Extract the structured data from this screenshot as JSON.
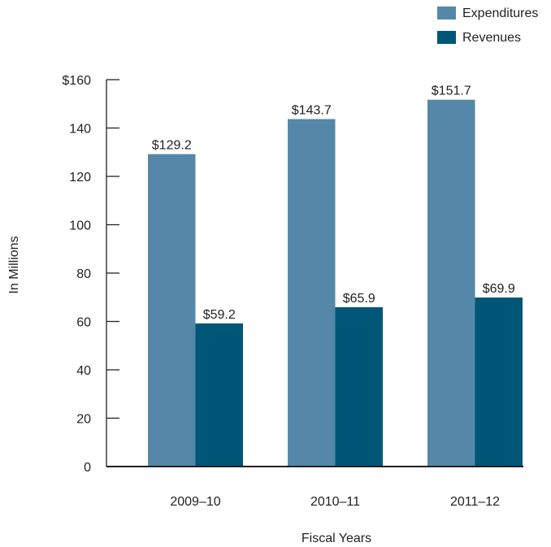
{
  "chart_data": {
    "type": "bar",
    "categories": [
      "2009–10",
      "2010–11",
      "2011–12"
    ],
    "series": [
      {
        "name": "Expenditures",
        "values": [
          129.2,
          143.7,
          151.7
        ],
        "labels": [
          "$129.2",
          "$143.7",
          "$151.7"
        ],
        "color": "#5588a8"
      },
      {
        "name": "Revenues",
        "values": [
          59.2,
          65.9,
          69.9
        ],
        "labels": [
          "$59.2",
          "$65.9",
          "$69.9"
        ],
        "color": "#005677"
      }
    ],
    "xlabel": "Fiscal Years",
    "ylabel": "In Millions",
    "ylim": [
      0,
      160
    ],
    "yticks": [
      0,
      20,
      40,
      60,
      80,
      100,
      120,
      140,
      160
    ],
    "ytick_labels": [
      "0",
      "20",
      "40",
      "60",
      "80",
      "100",
      "120",
      "140",
      "$160"
    ],
    "grid": false,
    "legend_position": "top-right"
  }
}
